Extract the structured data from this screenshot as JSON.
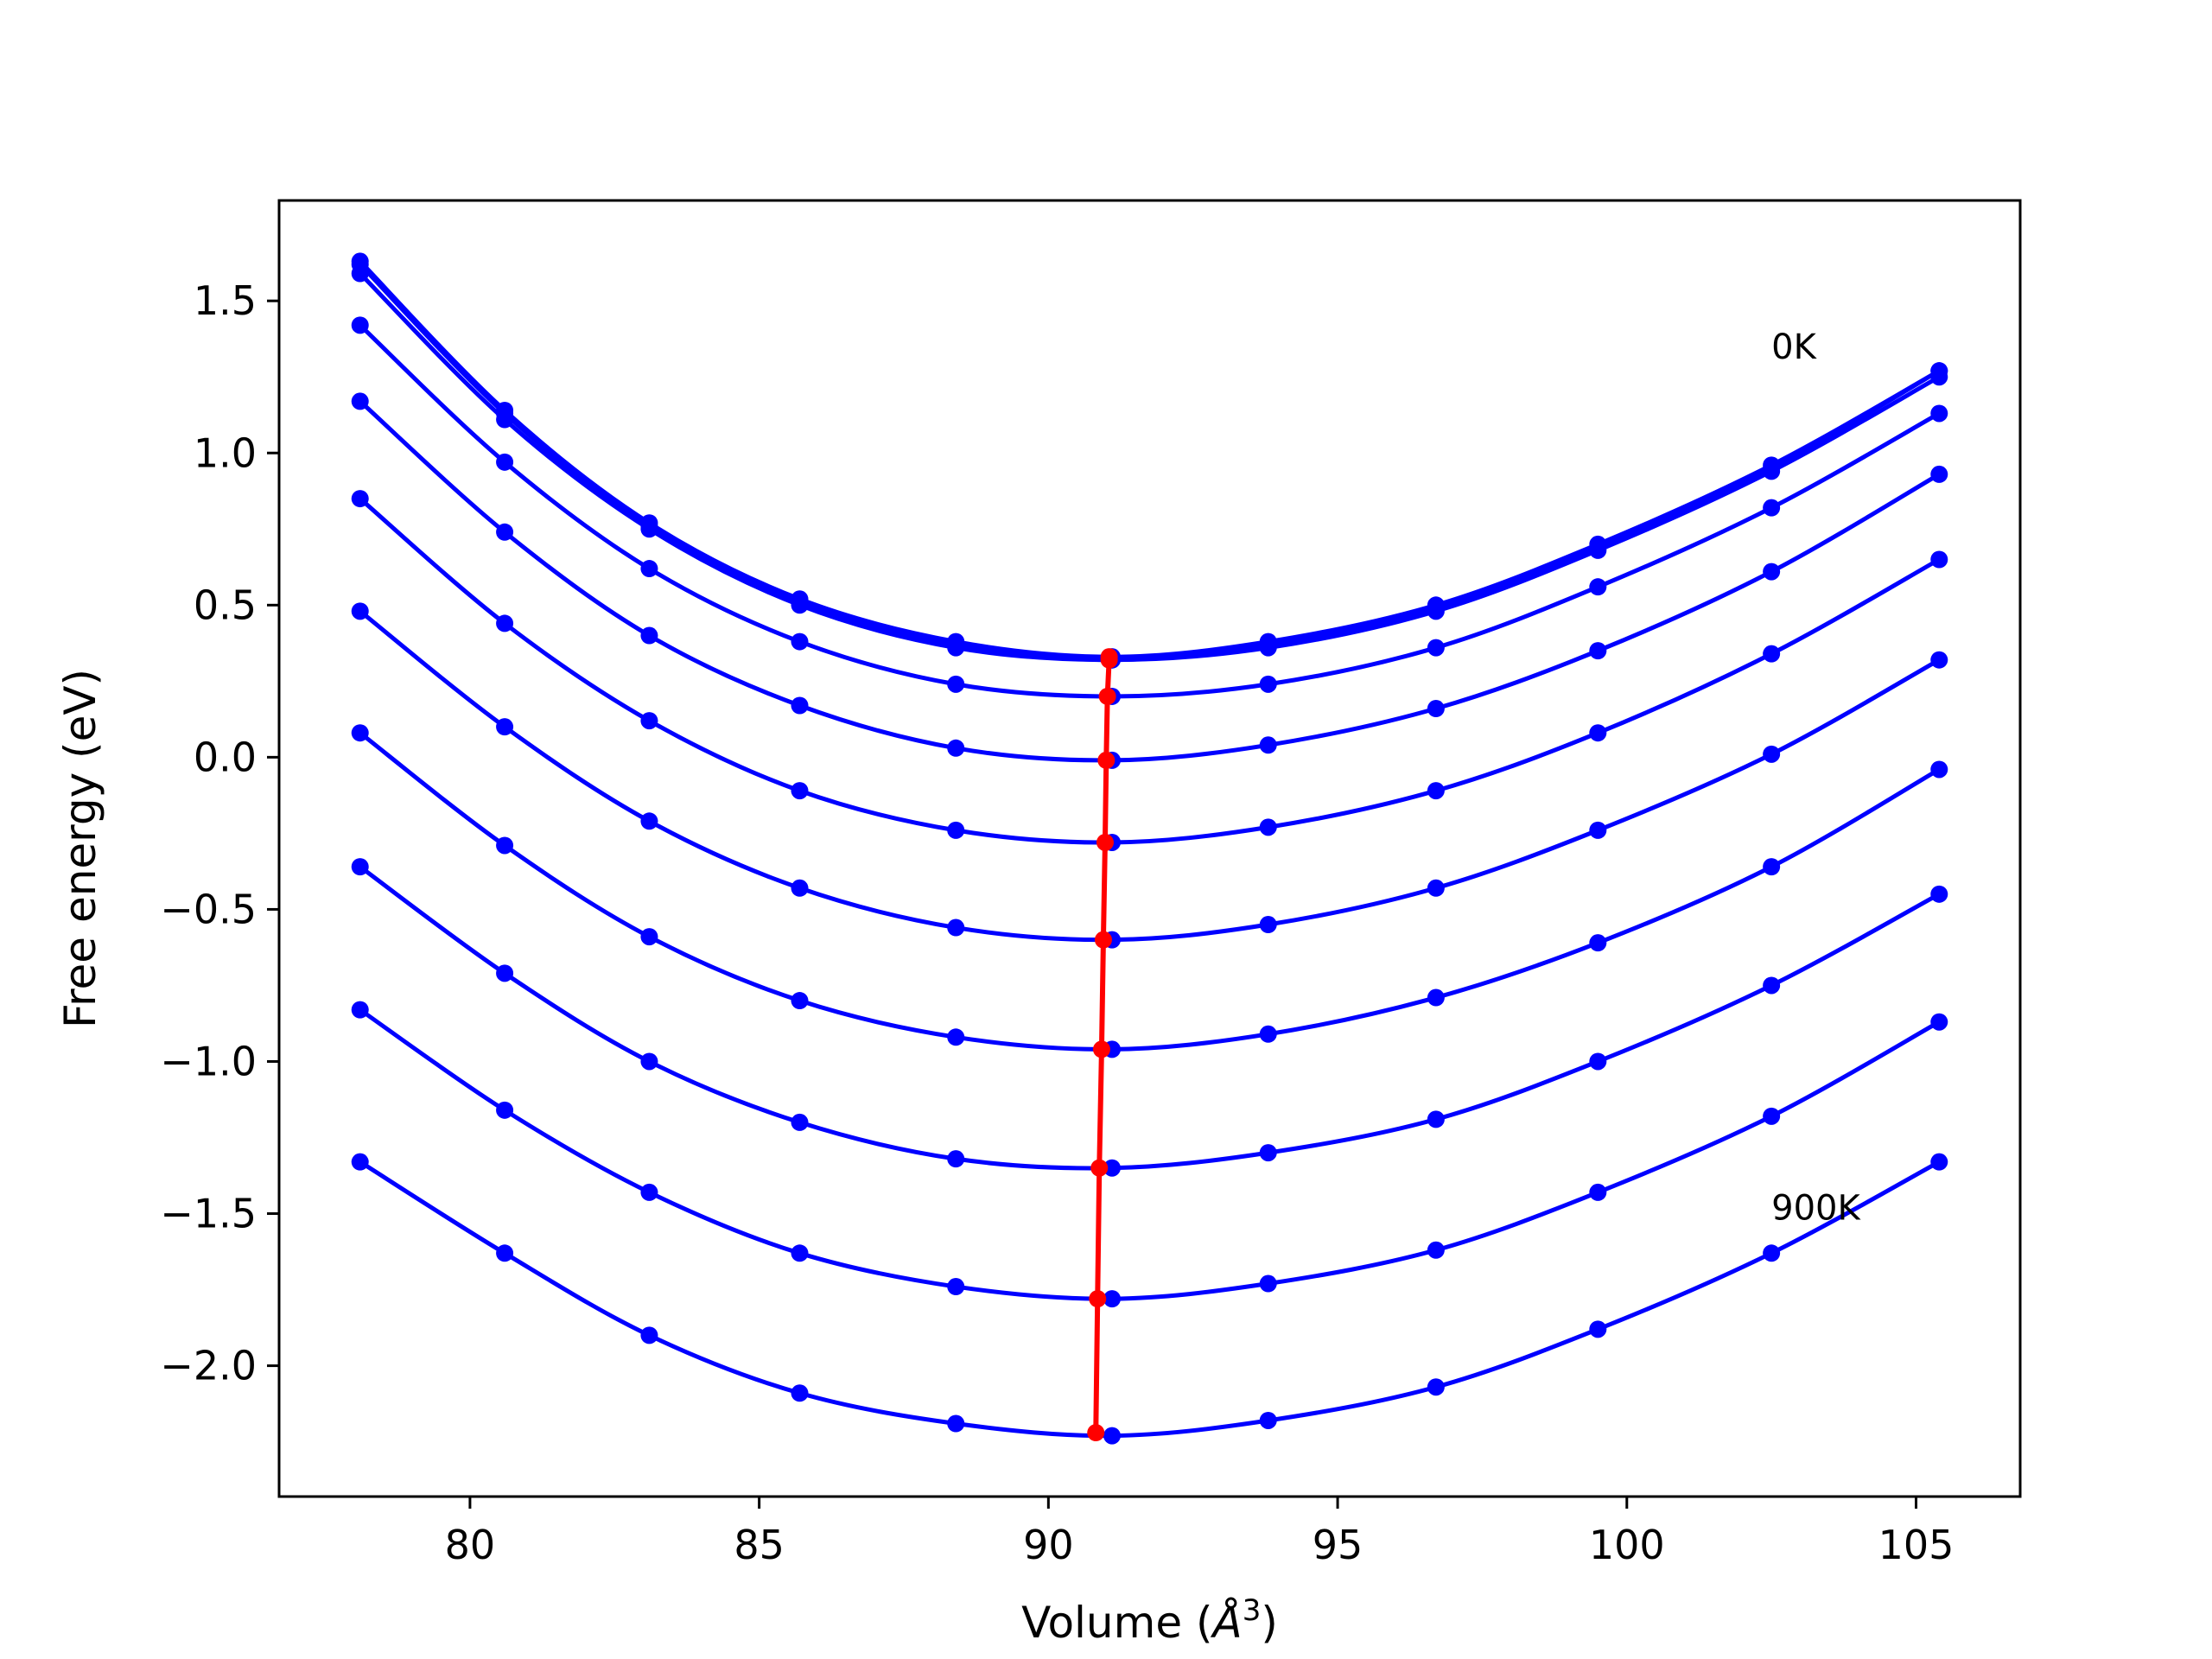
{
  "chart_data": {
    "type": "line",
    "title": "",
    "xlabel": "Volume (Å³)",
    "xlabel_parts": {
      "main": "Volume (",
      "italic": "Å",
      "sup": "3",
      "close": ")"
    },
    "ylabel": "Free energy (eV)",
    "xlim": [
      76.7,
      106.8
    ],
    "ylim": [
      -2.43,
      1.83
    ],
    "xticks": [
      80,
      85,
      90,
      95,
      100,
      105
    ],
    "xtick_labels": [
      "80",
      "85",
      "90",
      "95",
      "100",
      "105"
    ],
    "yticks": [
      -2.0,
      -1.5,
      -1.0,
      -0.5,
      0.0,
      0.5,
      1.0,
      1.5
    ],
    "ytick_labels": [
      "−2.0",
      "−1.5",
      "−1.0",
      "−0.5",
      "0.0",
      "0.5",
      "1.0",
      "1.5"
    ],
    "grid": false,
    "x": [
      78.1,
      80.6,
      83.1,
      85.7,
      88.4,
      91.1,
      93.8,
      96.7,
      99.5,
      102.5,
      105.4
    ],
    "series": [
      {
        "values": [
          1.63,
          1.14,
          0.77,
          0.52,
          0.38,
          0.33,
          0.38,
          0.5,
          0.7,
          0.96,
          1.27
        ]
      },
      {
        "values": [
          1.62,
          1.13,
          0.76,
          0.51,
          0.37,
          0.32,
          0.37,
          0.49,
          0.69,
          0.95,
          1.27
        ]
      },
      {
        "values": [
          1.59,
          1.11,
          0.75,
          0.5,
          0.36,
          0.32,
          0.36,
          0.48,
          0.68,
          0.94,
          1.25
        ]
      },
      {
        "values": [
          1.42,
          0.97,
          0.62,
          0.38,
          0.24,
          0.2,
          0.24,
          0.36,
          0.56,
          0.82,
          1.13
        ]
      },
      {
        "values": [
          1.17,
          0.74,
          0.4,
          0.17,
          0.03,
          -0.01,
          0.04,
          0.16,
          0.35,
          0.61,
          0.93
        ]
      },
      {
        "values": [
          0.85,
          0.44,
          0.12,
          -0.11,
          -0.24,
          -0.28,
          -0.23,
          -0.11,
          0.08,
          0.34,
          0.65
        ]
      },
      {
        "values": [
          0.48,
          0.1,
          -0.21,
          -0.43,
          -0.56,
          -0.6,
          -0.55,
          -0.43,
          -0.24,
          0.01,
          0.32
        ]
      },
      {
        "values": [
          0.08,
          -0.29,
          -0.59,
          -0.8,
          -0.92,
          -0.96,
          -0.91,
          -0.79,
          -0.61,
          -0.36,
          -0.04
        ]
      },
      {
        "values": [
          -0.36,
          -0.71,
          -1.0,
          -1.2,
          -1.32,
          -1.35,
          -1.3,
          -1.19,
          -1.0,
          -0.75,
          -0.45
        ]
      },
      {
        "values": [
          -0.83,
          -1.16,
          -1.43,
          -1.63,
          -1.74,
          -1.78,
          -1.73,
          -1.62,
          -1.43,
          -1.18,
          -0.87
        ]
      },
      {
        "values": [
          -1.33,
          -1.63,
          -1.9,
          -2.09,
          -2.19,
          -2.23,
          -2.18,
          -2.07,
          -1.88,
          -1.63,
          -1.33
        ]
      }
    ],
    "minimum_curve": {
      "x": [
        91.05,
        91.05,
        91.02,
        91.0,
        90.98,
        90.95,
        90.92,
        90.88,
        90.85,
        90.82
      ],
      "y": [
        0.33,
        0.32,
        0.2,
        -0.01,
        -0.28,
        -0.6,
        -0.96,
        -1.35,
        -1.78,
        -2.22
      ]
    },
    "annotations": [
      {
        "text": "0K",
        "x": 102.5,
        "y": 1.31
      },
      {
        "text": "900K",
        "x": 102.5,
        "y": -1.52
      }
    ],
    "colors": {
      "series": "#0000ff",
      "minimum": "#ff0000",
      "axes": "#000000"
    }
  }
}
